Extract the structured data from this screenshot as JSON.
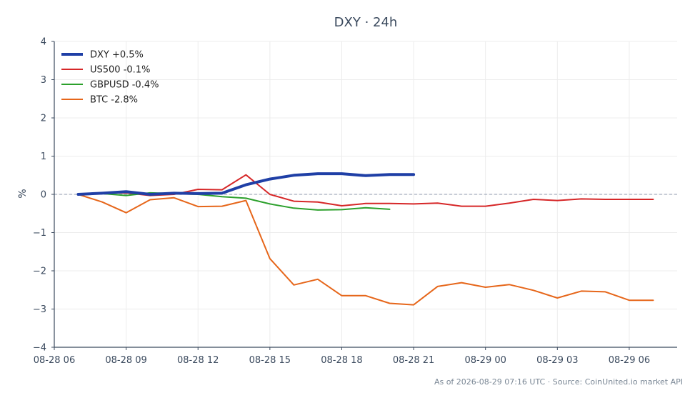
{
  "chart_data": {
    "type": "line",
    "title": "DXY · 24h",
    "xlabel": "",
    "ylabel": "%",
    "ylim": [
      -4,
      4
    ],
    "xlim": [
      "2026-08-28 06:00",
      "2026-08-29 08:00"
    ],
    "x_ticks": [
      "08-28 06",
      "08-28 09",
      "08-28 12",
      "08-28 15",
      "08-28 18",
      "08-28 21",
      "08-29 00",
      "08-29 03",
      "08-29 06"
    ],
    "y_ticks": [
      "4",
      "3",
      "2",
      "1",
      "0",
      "−1",
      "−2",
      "−3",
      "−4"
    ],
    "grid": true,
    "zero_line": true,
    "legend_position": "top-left",
    "series": [
      {
        "name": "DXY +0.5%",
        "color": "#1f3fa6",
        "emphasis": true,
        "x": [
          "2026-08-28 07:00",
          "2026-08-28 08:00",
          "2026-08-28 09:00",
          "2026-08-28 10:00",
          "2026-08-28 11:00",
          "2026-08-28 12:00",
          "2026-08-28 13:00",
          "2026-08-28 14:00",
          "2026-08-28 15:00",
          "2026-08-28 16:00",
          "2026-08-28 17:00",
          "2026-08-28 18:00",
          "2026-08-28 19:00",
          "2026-08-28 20:00",
          "2026-08-28 21:00"
        ],
        "values": [
          0.0,
          0.03,
          0.07,
          0.0,
          0.03,
          0.02,
          0.03,
          0.25,
          0.4,
          0.5,
          0.54,
          0.54,
          0.49,
          0.52,
          0.52
        ]
      },
      {
        "name": "US500 -0.1%",
        "color": "#d62728",
        "x": [
          "2026-08-28 07:00",
          "2026-08-28 08:00",
          "2026-08-28 09:00",
          "2026-08-28 10:00",
          "2026-08-28 11:00",
          "2026-08-28 12:00",
          "2026-08-28 13:00",
          "2026-08-28 14:00",
          "2026-08-28 15:00",
          "2026-08-28 16:00",
          "2026-08-28 17:00",
          "2026-08-28 18:00",
          "2026-08-28 19:00",
          "2026-08-28 20:00",
          "2026-08-28 21:00",
          "2026-08-28 22:00",
          "2026-08-28 23:00",
          "2026-08-29 00:00",
          "2026-08-29 01:00",
          "2026-08-29 02:00",
          "2026-08-29 03:00",
          "2026-08-29 04:00",
          "2026-08-29 05:00",
          "2026-08-29 06:00",
          "2026-08-29 07:00"
        ],
        "values": [
          0.0,
          0.03,
          0.04,
          -0.03,
          0.0,
          0.13,
          0.12,
          0.51,
          0.0,
          -0.18,
          -0.2,
          -0.3,
          -0.24,
          -0.24,
          -0.25,
          -0.23,
          -0.31,
          -0.31,
          -0.23,
          -0.13,
          -0.16,
          -0.12,
          -0.13,
          -0.13,
          -0.13
        ]
      },
      {
        "name": "GBPUSD -0.4%",
        "color": "#2ca02c",
        "x": [
          "2026-08-28 07:00",
          "2026-08-28 08:00",
          "2026-08-28 09:00",
          "2026-08-28 10:00",
          "2026-08-28 11:00",
          "2026-08-28 12:00",
          "2026-08-28 13:00",
          "2026-08-28 14:00",
          "2026-08-28 15:00",
          "2026-08-28 16:00",
          "2026-08-28 17:00",
          "2026-08-28 18:00",
          "2026-08-28 19:00",
          "2026-08-28 20:00"
        ],
        "values": [
          0.0,
          0.02,
          -0.03,
          0.04,
          0.02,
          0.0,
          -0.06,
          -0.1,
          -0.25,
          -0.36,
          -0.41,
          -0.4,
          -0.35,
          -0.39
        ]
      },
      {
        "name": "BTC -2.8%",
        "color": "#e6661a",
        "x": [
          "2026-08-28 07:00",
          "2026-08-28 08:00",
          "2026-08-28 09:00",
          "2026-08-28 10:00",
          "2026-08-28 11:00",
          "2026-08-28 12:00",
          "2026-08-28 13:00",
          "2026-08-28 14:00",
          "2026-08-28 15:00",
          "2026-08-28 16:00",
          "2026-08-28 17:00",
          "2026-08-28 18:00",
          "2026-08-28 19:00",
          "2026-08-28 20:00",
          "2026-08-28 21:00",
          "2026-08-28 22:00",
          "2026-08-28 23:00",
          "2026-08-29 00:00",
          "2026-08-29 01:00",
          "2026-08-29 02:00",
          "2026-08-29 03:00",
          "2026-08-29 04:00",
          "2026-08-29 05:00",
          "2026-08-29 06:00",
          "2026-08-29 07:00"
        ],
        "values": [
          0.0,
          -0.2,
          -0.48,
          -0.14,
          -0.09,
          -0.32,
          -0.31,
          -0.16,
          -1.68,
          -2.37,
          -2.22,
          -2.65,
          -2.65,
          -2.85,
          -2.89,
          -2.41,
          -2.31,
          -2.43,
          -2.36,
          -2.51,
          -2.71,
          -2.53,
          -2.55,
          -2.77,
          -2.77
        ]
      }
    ],
    "footer": "As of 2026-08-29 07:16 UTC · Source: CoinUnited.io market API"
  }
}
